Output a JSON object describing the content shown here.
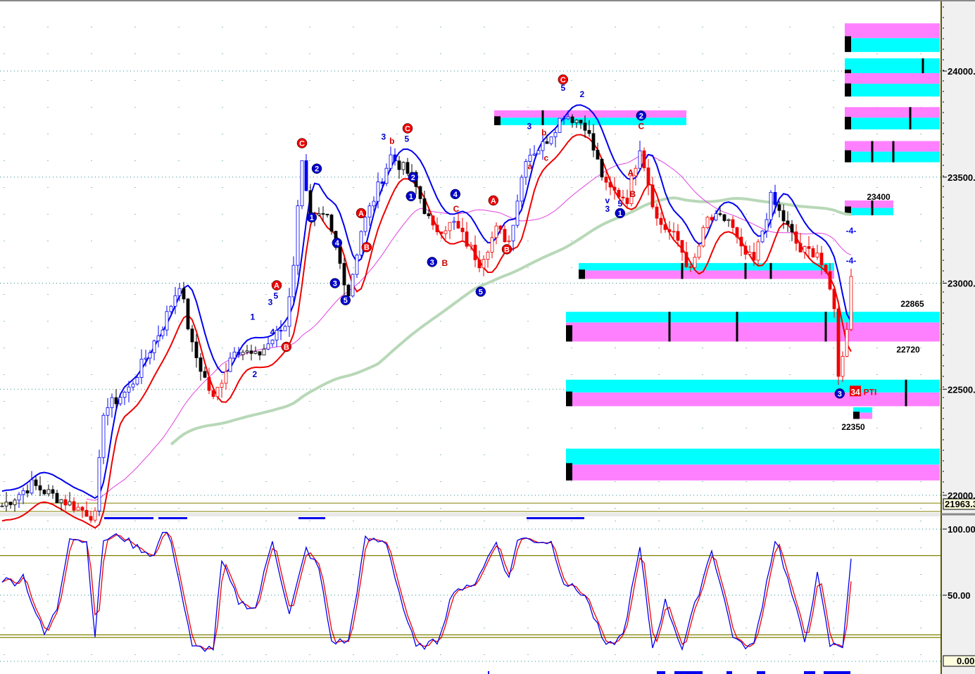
{
  "chart_data": [
    {
      "type": "candlestick",
      "panel": "price",
      "x_unit": "bar",
      "ylim": [
        21900,
        24320
      ],
      "grid": true,
      "y_ticks": [
        "24000.0",
        "23500.0",
        "23000.0",
        "22500.0",
        "22000.0"
      ],
      "last_value_label": "21963.3",
      "reference_line": 21963.3,
      "price_path": [
        [
          0,
          21950
        ],
        [
          7,
          22050
        ],
        [
          22,
          21900
        ],
        [
          24,
          22400
        ],
        [
          30,
          22500
        ],
        [
          38,
          22800
        ],
        [
          42,
          23000
        ],
        [
          45,
          22700
        ],
        [
          50,
          22450
        ],
        [
          55,
          22700
        ],
        [
          60,
          22650
        ],
        [
          67,
          22800
        ],
        [
          69,
          23100
        ],
        [
          71,
          23600
        ],
        [
          73,
          23300
        ],
        [
          77,
          23300
        ],
        [
          82,
          22950
        ],
        [
          85,
          23250
        ],
        [
          88,
          23400
        ],
        [
          92,
          23600
        ],
        [
          97,
          23500
        ],
        [
          102,
          23250
        ],
        [
          107,
          23280
        ],
        [
          113,
          23100
        ],
        [
          117,
          23250
        ],
        [
          120,
          23200
        ],
        [
          124,
          23600
        ],
        [
          128,
          23650
        ],
        [
          133,
          23800
        ],
        [
          138,
          23750
        ],
        [
          143,
          23450
        ],
        [
          148,
          23400
        ],
        [
          151,
          23650
        ],
        [
          155,
          23300
        ],
        [
          160,
          23200
        ],
        [
          163,
          23050
        ],
        [
          167,
          23300
        ],
        [
          172,
          23300
        ],
        [
          175,
          23150
        ],
        [
          178,
          23100
        ],
        [
          182,
          23400
        ],
        [
          185,
          23300
        ],
        [
          189,
          23150
        ],
        [
          193,
          23150
        ],
        [
          197,
          22900
        ],
        [
          198,
          22550
        ],
        [
          200,
          22800
        ],
        [
          201,
          23030
        ]
      ],
      "channel_colors": {
        "upper": "#0000ee",
        "lower": "#ee0000",
        "slow_ma": "#e040e0",
        "long_ma": "#b8d8b8"
      },
      "zones": [
        {
          "bar_from": 134,
          "bar_to": 222,
          "cyan": [
            22865,
            22815
          ],
          "magenta": [
            22815,
            22725
          ],
          "marks": [
            158,
            174,
            195
          ]
        },
        {
          "bar_from": 134,
          "bar_to": 222,
          "cyan": [
            22545,
            22485
          ],
          "magenta": [
            22485,
            22420
          ],
          "marks": [
            214
          ]
        },
        {
          "bar_from": 134,
          "bar_to": 222,
          "cyan": [
            22220,
            22145
          ],
          "magenta": [
            22145,
            22070
          ],
          "marks": []
        },
        {
          "bar_from": 137,
          "bar_to": 197,
          "cyan": [
            23095,
            23060
          ],
          "magenta": [
            23060,
            23020
          ],
          "marks": [
            161,
            176,
            182
          ]
        },
        {
          "bar_from": 117,
          "bar_to": 162,
          "cyan": [
            23780,
            23745
          ],
          "magenta": [
            23815,
            23780
          ],
          "marks": [
            128
          ]
        },
        {
          "bar_from": 200,
          "bar_to": 222,
          "cyan": [
            24155,
            24090
          ],
          "magenta": [
            24225,
            24155
          ],
          "marks": []
        },
        {
          "bar_from": 200,
          "bar_to": 222,
          "cyan": [
            24060,
            23990
          ],
          "magenta": [
            24010,
            23940
          ],
          "marks": [
            218
          ]
        },
        {
          "bar_from": 200,
          "bar_to": 222,
          "cyan": [
            23940,
            23880
          ],
          "magenta": [
            23990,
            23940
          ],
          "marks": []
        },
        {
          "bar_from": 200,
          "bar_to": 222,
          "cyan": [
            23780,
            23725
          ],
          "magenta": [
            23830,
            23780
          ],
          "marks": [
            215
          ]
        },
        {
          "bar_from": 200,
          "bar_to": 222,
          "cyan": [
            23620,
            23570
          ],
          "magenta": [
            23670,
            23620
          ],
          "marks": [
            206,
            211
          ]
        },
        {
          "bar_from": 200,
          "bar_to": 211,
          "cyan": [
            23355,
            23320
          ],
          "magenta": [
            23390,
            23355
          ],
          "marks": [
            206
          ]
        },
        {
          "bar_from": 202,
          "bar_to": 206,
          "cyan": [
            22415,
            22390
          ],
          "magenta": [
            22390,
            22360
          ],
          "marks": []
        }
      ],
      "annotations": [
        {
          "text": "23400",
          "bar": 207.5,
          "price": 23410,
          "color": "#000000"
        },
        {
          "text": "22865",
          "bar": 215.5,
          "price": 22905,
          "color": "#000000"
        },
        {
          "text": "22720",
          "bar": 214.5,
          "price": 22690,
          "color": "#000000"
        },
        {
          "text": "22350",
          "bar": 201.5,
          "price": 22325,
          "color": "#000000"
        },
        {
          "text": "34",
          "bar": 202,
          "price": 22490,
          "color": "#ffffff",
          "box": "#ee0000"
        },
        {
          "text": "PTI",
          "bar": 205.5,
          "price": 22490,
          "color": "#ee0000"
        },
        {
          "text": "-4-",
          "bar": 201,
          "price": 23250,
          "color": "#0000ee"
        },
        {
          "text": "-4-",
          "bar": 201,
          "price": 23110,
          "color": "#0000ee"
        }
      ],
      "wave_labels": [
        {
          "text": "C",
          "bar": 71,
          "price": 23660,
          "circle": "#ee0000"
        },
        {
          "text": "2",
          "bar": 74.5,
          "price": 23540,
          "circle": "#0000cc"
        },
        {
          "text": "1",
          "bar": 73.3,
          "price": 23310,
          "circle": "#0000cc"
        },
        {
          "text": "4",
          "bar": 79.3,
          "price": 23190,
          "circle": "#0000cc"
        },
        {
          "text": "3",
          "bar": 78.8,
          "price": 23000,
          "circle": "#0000cc"
        },
        {
          "text": "5",
          "bar": 81.3,
          "price": 22920,
          "circle": "#0000cc"
        },
        {
          "text": "A",
          "bar": 85,
          "price": 23330,
          "circle": "#ee0000"
        },
        {
          "text": "B",
          "bar": 86.3,
          "price": 23170,
          "circle": "#ee0000"
        },
        {
          "text": "C",
          "bar": 96,
          "price": 23730,
          "circle": "#ee0000"
        },
        {
          "text": "2",
          "bar": 97.3,
          "price": 23500,
          "circle": "#0000cc"
        },
        {
          "text": "1",
          "bar": 96.8,
          "price": 23410,
          "circle": "#0000cc"
        },
        {
          "text": "3",
          "bar": 101.8,
          "price": 23100,
          "circle": "#0000cc"
        },
        {
          "text": "4",
          "bar": 107.3,
          "price": 23420,
          "circle": "#0000cc"
        },
        {
          "text": "5",
          "bar": 113.3,
          "price": 22960,
          "circle": "#0000cc"
        },
        {
          "text": "A",
          "bar": 116.3,
          "price": 23390,
          "circle": "#ee0000"
        },
        {
          "text": "B",
          "bar": 119.5,
          "price": 23160,
          "circle": "#ee0000"
        },
        {
          "text": "C",
          "bar": 132.8,
          "price": 23960,
          "circle": "#ee0000"
        },
        {
          "text": "2",
          "bar": 151.3,
          "price": 23790,
          "circle": "#0000cc"
        },
        {
          "text": "1",
          "bar": 146.3,
          "price": 23330,
          "circle": "#0000cc"
        },
        {
          "text": "A",
          "bar": 65,
          "price": 22990,
          "circle": "#ee0000"
        },
        {
          "text": "B",
          "bar": 67.3,
          "price": 22700,
          "circle": "#ee0000"
        },
        {
          "text": "3",
          "bar": 198.3,
          "price": 22480,
          "circle": "#0000cc"
        },
        {
          "text": "5",
          "bar": 132.8,
          "price": 23920,
          "color": "#0000cc"
        },
        {
          "text": "2",
          "bar": 137.3,
          "price": 23890,
          "color": "#0000cc"
        },
        {
          "text": "3",
          "bar": 124.8,
          "price": 23740,
          "color": "#0000cc"
        },
        {
          "text": "b",
          "bar": 128.3,
          "price": 23710,
          "color": "#cc0000"
        },
        {
          "text": "a",
          "bar": 125,
          "price": 23550,
          "color": "#cc0000"
        },
        {
          "text": "c",
          "bar": 128.8,
          "price": 23590,
          "color": "#cc0000"
        },
        {
          "text": "C",
          "bar": 151.3,
          "price": 23740,
          "color": "#cc0000"
        },
        {
          "text": "3",
          "bar": 90.3,
          "price": 23690,
          "color": "#0000cc"
        },
        {
          "text": "b",
          "bar": 92.3,
          "price": 23670,
          "color": "#cc0000"
        },
        {
          "text": "5",
          "bar": 95.8,
          "price": 23680,
          "color": "#0000cc"
        },
        {
          "text": "B",
          "bar": 104.8,
          "price": 23095,
          "color": "#cc0000"
        },
        {
          "text": "C",
          "bar": 107.5,
          "price": 23350,
          "color": "#cc0000"
        },
        {
          "text": "1",
          "bar": 59.3,
          "price": 22840,
          "color": "#0000cc"
        },
        {
          "text": "2",
          "bar": 59.8,
          "price": 22570,
          "color": "#0000cc"
        },
        {
          "text": "5",
          "bar": 64.8,
          "price": 22940,
          "color": "#0000cc"
        },
        {
          "text": "3",
          "bar": 63.5,
          "price": 22910,
          "color": "#0000cc"
        },
        {
          "text": "4",
          "bar": 64,
          "price": 22770,
          "color": "#0000cc"
        },
        {
          "text": "v",
          "bar": 143.3,
          "price": 23390,
          "color": "#0000cc"
        },
        {
          "text": "3",
          "bar": 143.3,
          "price": 23350,
          "color": "#0000cc"
        },
        {
          "text": "5",
          "bar": 146.3,
          "price": 23375,
          "color": "#0000cc"
        },
        {
          "text": "A",
          "bar": 148.8,
          "price": 23520,
          "color": "#cc0000"
        },
        {
          "text": "B",
          "bar": 149.3,
          "price": 23420,
          "color": "#cc0000"
        }
      ]
    },
    {
      "type": "line",
      "panel": "oscillator",
      "x_unit": "bar",
      "ylim": [
        0,
        110
      ],
      "y_ticks": [
        "100.00",
        "50.00"
      ],
      "last_value_label": "0.00",
      "reference_lines": [
        80,
        20,
        18
      ],
      "series": [
        {
          "color": "#0000ee",
          "values": [
            [
              0,
              62
            ],
            [
              3,
              60
            ],
            [
              5,
              65
            ],
            [
              7,
              45
            ],
            [
              10,
              20
            ],
            [
              13,
              40
            ],
            [
              16,
              95
            ],
            [
              20,
              90
            ],
            [
              22,
              20
            ],
            [
              24,
              92
            ],
            [
              28,
              95
            ],
            [
              31,
              88
            ],
            [
              36,
              80
            ],
            [
              38,
              98
            ],
            [
              40,
              92
            ],
            [
              45,
              10
            ],
            [
              50,
              10
            ],
            [
              52,
              75
            ],
            [
              56,
              45
            ],
            [
              60,
              40
            ],
            [
              64,
              92
            ],
            [
              68,
              35
            ],
            [
              72,
              85
            ],
            [
              75,
              70
            ],
            [
              78,
              15
            ],
            [
              82,
              15
            ],
            [
              86,
              92
            ],
            [
              91,
              90
            ],
            [
              95,
              40
            ],
            [
              98,
              10
            ],
            [
              103,
              15
            ],
            [
              107,
              55
            ],
            [
              111,
              55
            ],
            [
              117,
              90
            ],
            [
              120,
              62
            ],
            [
              122,
              93
            ],
            [
              130,
              90
            ],
            [
              133,
              60
            ],
            [
              138,
              50
            ],
            [
              143,
              10
            ],
            [
              147,
              20
            ],
            [
              151,
              85
            ],
            [
              154,
              10
            ],
            [
              157,
              45
            ],
            [
              161,
              10
            ],
            [
              168,
              85
            ],
            [
              173,
              20
            ],
            [
              175,
              12
            ],
            [
              178,
              12
            ],
            [
              183,
              92
            ],
            [
              184,
              85
            ],
            [
              190,
              15
            ],
            [
              193,
              65
            ],
            [
              196,
              12
            ],
            [
              199,
              12
            ],
            [
              201,
              78
            ]
          ]
        },
        {
          "color": "#ee0000",
          "lag": 1
        }
      ]
    }
  ]
}
